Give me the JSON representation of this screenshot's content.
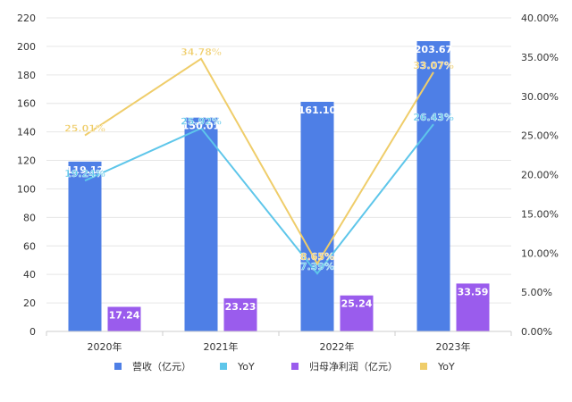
{
  "chart_data": {
    "type": "bar",
    "categories": [
      "2020年",
      "2021年",
      "2022年",
      "2023年"
    ],
    "y_left": {
      "range": [
        0,
        220
      ],
      "ticks": [
        "0",
        "20",
        "40",
        "60",
        "80",
        "100",
        "120",
        "140",
        "160",
        "180",
        "200",
        "220"
      ]
    },
    "y_right": {
      "range": [
        0,
        40
      ],
      "ticks": [
        "0.00%",
        "5.00%",
        "10.00%",
        "15.00%",
        "20.00%",
        "25.00%",
        "30.00%",
        "35.00%",
        "40.00%"
      ]
    },
    "grid": true,
    "legend_position": "bottom",
    "series": [
      {
        "name": "营收（亿元）",
        "kind": "bar",
        "axis": "left",
        "color": "#4e7fe6",
        "values": [
          119.12,
          150.01,
          161.1,
          203.67
        ],
        "labels": [
          "119.12",
          "150.01",
          "161.10",
          "203.67"
        ]
      },
      {
        "name": "YoY",
        "kind": "line",
        "axis": "right",
        "color": "#5ec6ea",
        "values": [
          19.24,
          25.92,
          7.39,
          26.43
        ],
        "labels": [
          "19.24%",
          "25.92%",
          "7.39%",
          "26.43%"
        ]
      },
      {
        "name": "归母净利润（亿元）",
        "kind": "bar",
        "axis": "left",
        "color": "#9a5ced",
        "values": [
          17.24,
          23.23,
          25.24,
          33.59
        ],
        "labels": [
          "17.24",
          "23.23",
          "25.24",
          "33.59"
        ]
      },
      {
        "name": "YoY",
        "kind": "line",
        "axis": "right",
        "color": "#efcd6a",
        "values": [
          25.01,
          34.78,
          8.65,
          33.07
        ],
        "labels": [
          "25.01%",
          "34.78%",
          "8.65%",
          "33.07%"
        ]
      }
    ]
  }
}
